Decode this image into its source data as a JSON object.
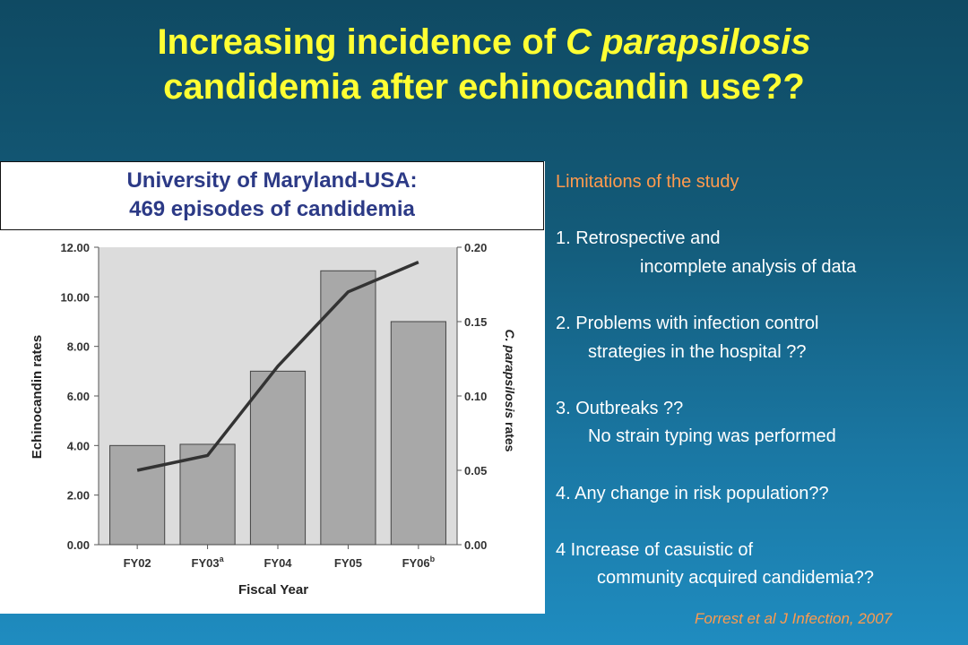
{
  "slide": {
    "title_line1_prefix": "Increasing incidence of ",
    "title_line1_italic": "C parapsilosis",
    "title_line2": "candidemia after echinocandin use??",
    "box_line1": "University of Maryland-USA:",
    "box_line2": "469 episodes of candidemia",
    "limitations_title": "Limitations of the study",
    "items": [
      {
        "line1": "1.  Retrospective and",
        "line2": "incomplete analysis of data"
      },
      {
        "line1": "2. Problems with infection control",
        "line2": "strategies in the hospital ??"
      },
      {
        "line1": "3. Outbreaks ??",
        "line2": "No strain typing was performed"
      },
      {
        "line1": "4. Any change in risk population??",
        "line2": ""
      },
      {
        "line1": "4   Increase of casuistic of",
        "line2": "community acquired candidemia??"
      }
    ],
    "citation": "Forrest et al J Infection, 2007"
  },
  "chart_data": {
    "type": "bar",
    "categories": [
      "FY02",
      "FY03",
      "FY04",
      "FY05",
      "FY06"
    ],
    "category_superscripts": [
      "",
      "a",
      "",
      "",
      "b"
    ],
    "values": [
      4.0,
      4.05,
      7.0,
      11.05,
      9.0
    ],
    "line_values": [
      0.05,
      0.06,
      0.12,
      0.17,
      0.19
    ],
    "xlabel": "Fiscal Year",
    "ylabel": "Echinocandin rates",
    "ylabel_right_italic": "C. parapsilosis",
    "ylabel_right_rest": " rates",
    "ylim": [
      0,
      12
    ],
    "ylim_right": [
      0,
      0.2
    ],
    "yticks": [
      "0.00",
      "2.00",
      "4.00",
      "6.00",
      "8.00",
      "10.00",
      "12.00"
    ],
    "yticks_right": [
      "0.00",
      "0.05",
      "0.10",
      "0.15",
      "0.20"
    ],
    "colors": {
      "bar": "#a8a8a8",
      "plot_bg": "#dcdcdc",
      "line": "#333333"
    }
  }
}
